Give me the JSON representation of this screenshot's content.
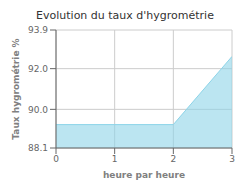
{
  "chart_data": {
    "type": "area",
    "title": "Evolution du taux d'hygrométrie",
    "xlabel": "heure par heure",
    "ylabel": "Taux hygrométrie %",
    "x": [
      0,
      2,
      2,
      3
    ],
    "values": [
      89.25,
      89.25,
      89.25,
      92.6
    ],
    "color": "#8dd4e8",
    "xlim": [
      0,
      3
    ],
    "xticks": [
      0,
      1,
      2,
      3
    ],
    "ylim": [
      88.1,
      93.9
    ],
    "yticks": [
      88.1,
      {
        "value": 90.0,
        "label": "90.0"
      },
      {
        "value": 92.0,
        "label": "92.0"
      },
      93.9
    ],
    "grid": true
  }
}
